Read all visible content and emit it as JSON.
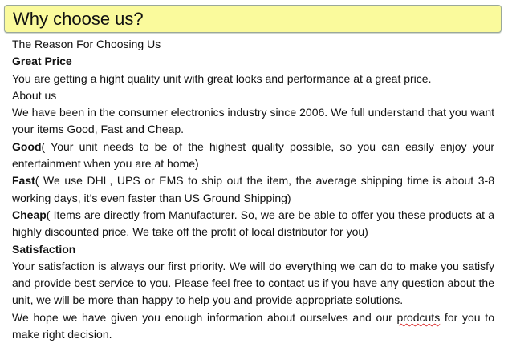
{
  "header": {
    "title": "Why choose us?"
  },
  "content": {
    "intro": "The Reason For Choosing Us",
    "great_price_heading": "Great Price",
    "great_price_text": "You are getting a hight quality unit with great looks and performance at a great price.",
    "about_heading": "About us",
    "about_text": "We have been in the consumer electronics industry since 2006. We full understand that you want your items Good, Fast and Cheap.",
    "good_label": "Good",
    "good_text": "( Your unit needs to be of the highest quality possible, so you can easily enjoy your entertainment when you are at home)",
    "fast_label": "Fast",
    "fast_text": "( We use DHL, UPS or EMS to ship out the item, the average shipping time is about 3-8 working days, it’s even faster than US Ground Shipping)",
    "cheap_label": "Cheap",
    "cheap_text": "( Items are directly from Manufacturer. So, we are be able to offer you these products at a highly discounted price. We take off the profit of local distributor for you)",
    "satisfaction_heading": "Satisfaction",
    "satisfaction_text": "Your satisfaction is always our first priority. We will do everything we can do to make you satisfy and provide best service to you. Please feel free to contact us if you have any question about the unit, we will be more than happy to help you and provide appropriate solutions.",
    "closing_before": "We hope we have given you enough information about ourselves and our ",
    "closing_misspelled": "prodcuts",
    "closing_after": " for you to make right decision."
  },
  "colors": {
    "header_bg": "#fafa9c",
    "header_border": "#9aa89a",
    "spellcheck": "#dd3333"
  }
}
